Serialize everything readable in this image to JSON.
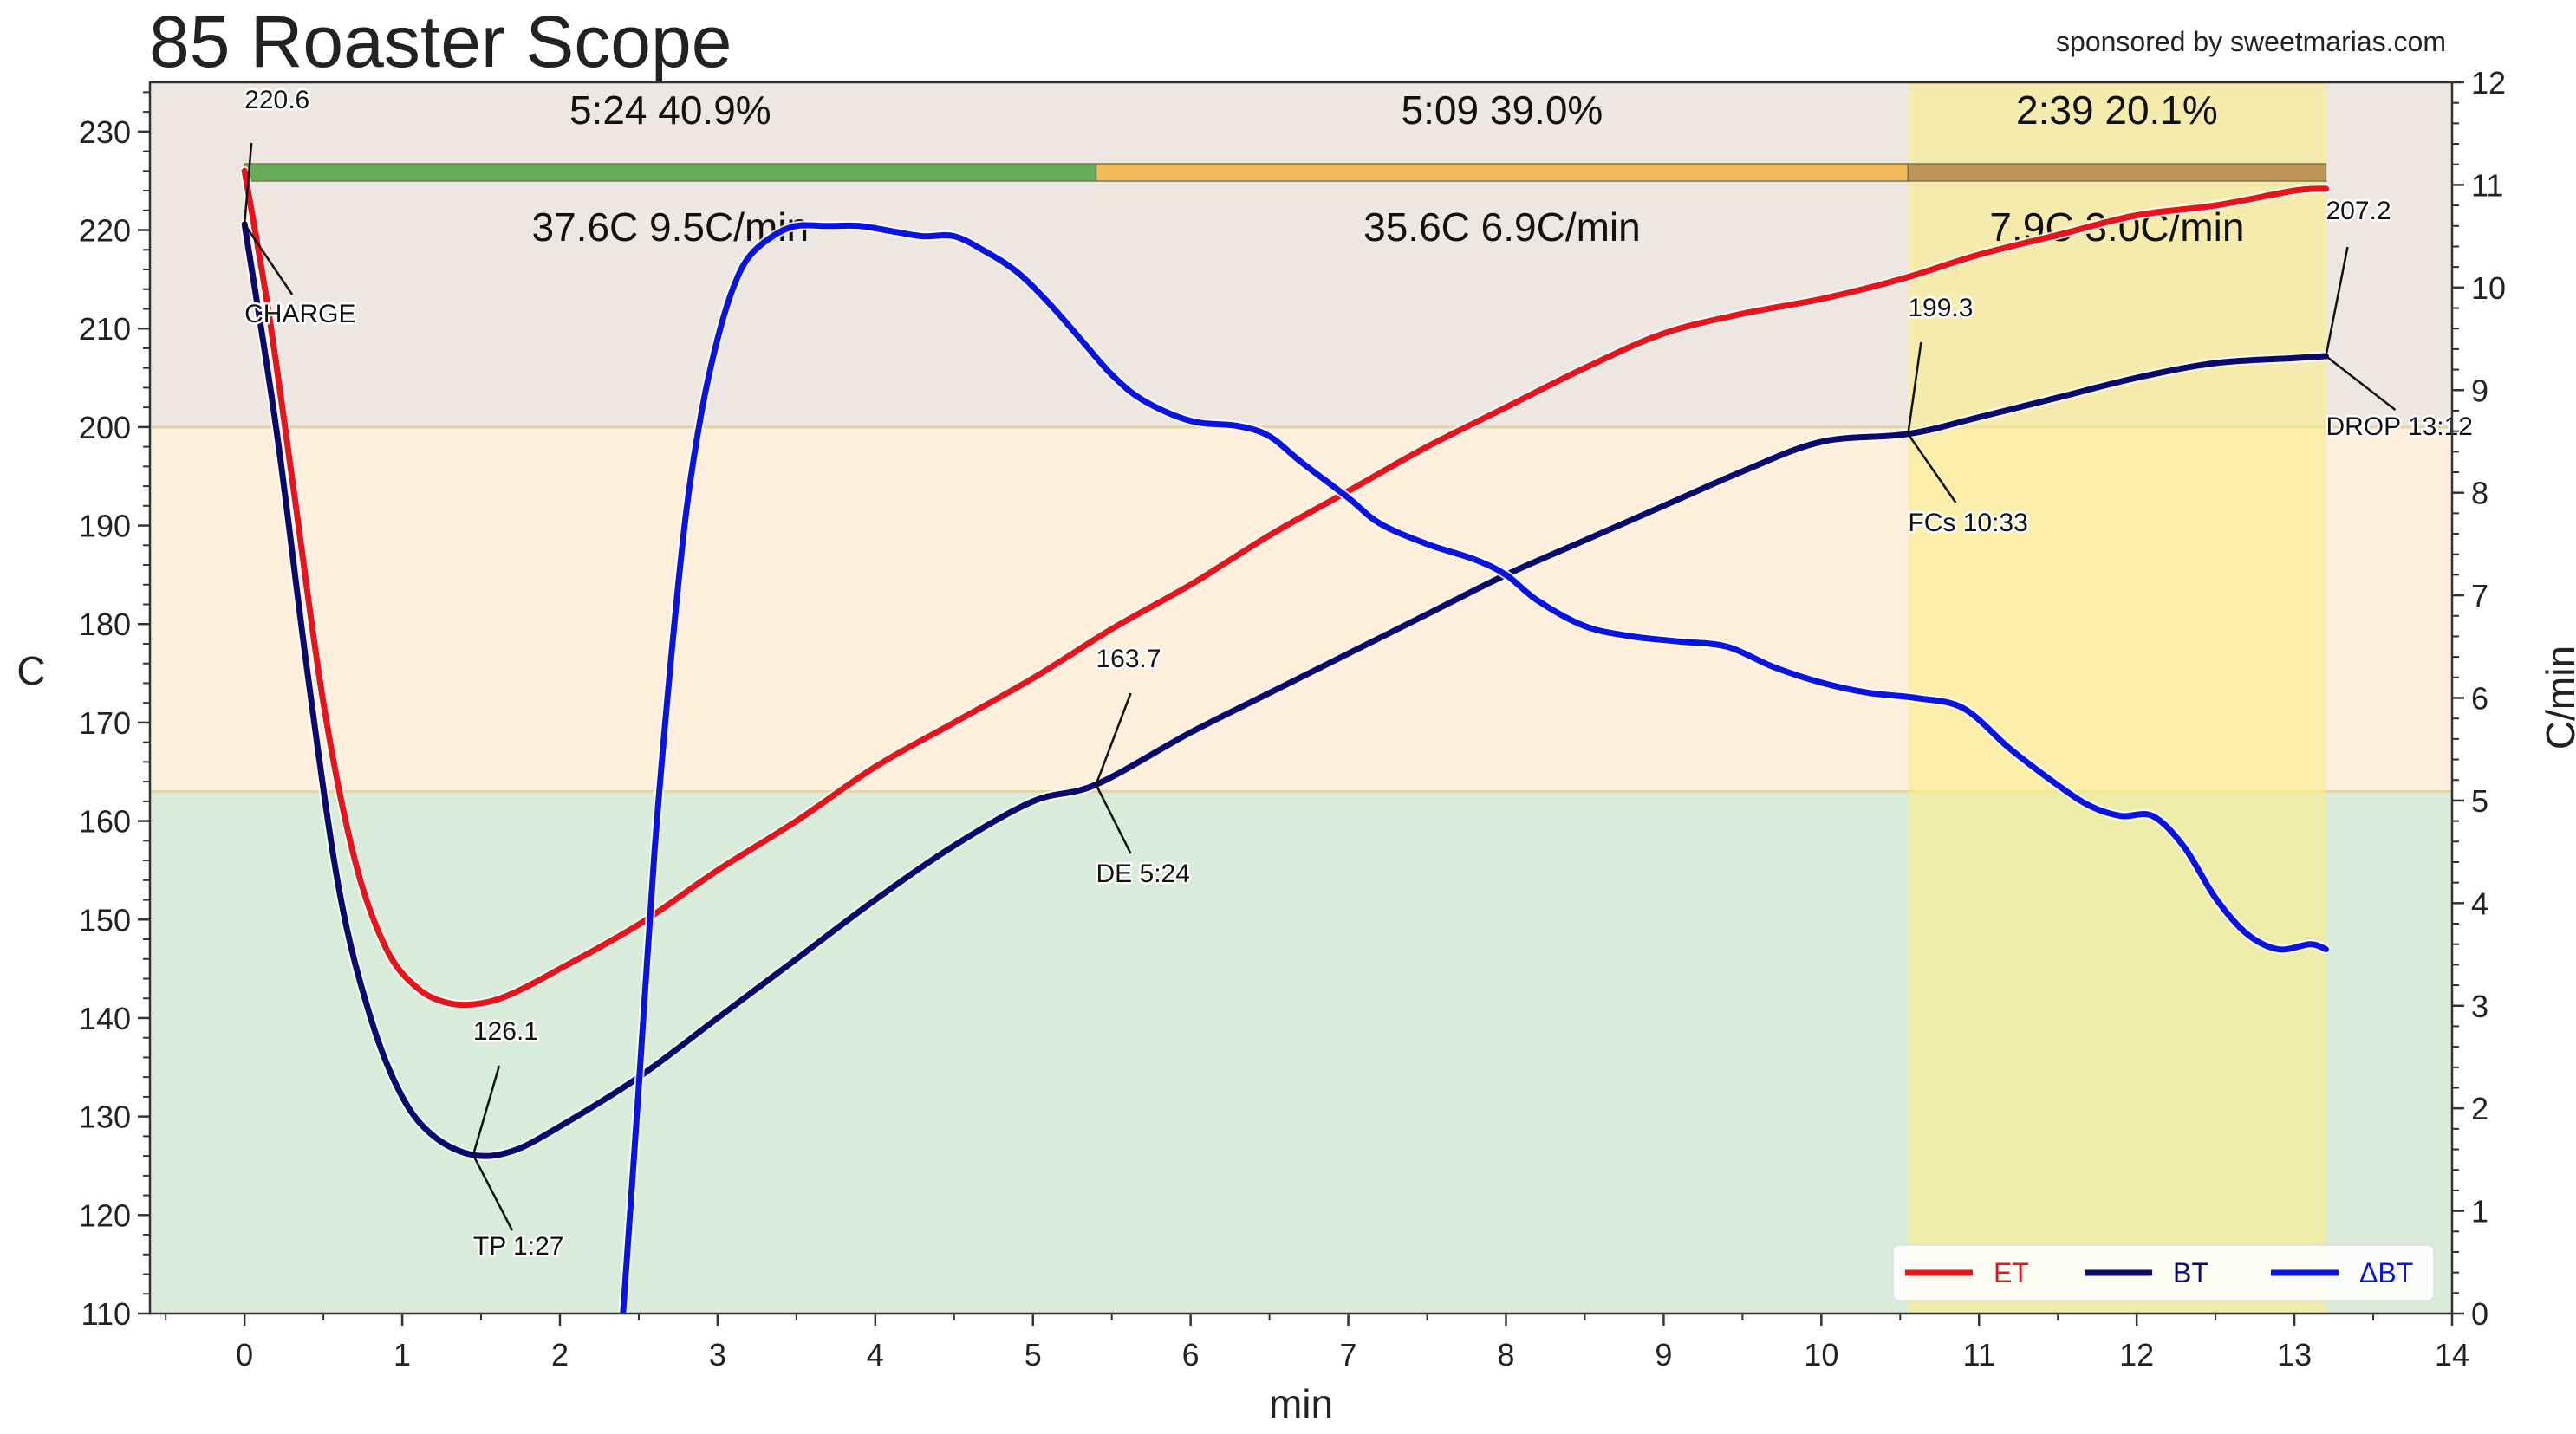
{
  "app": {
    "title": "85 Roaster Scope",
    "sponsor": "sponsored by sweetmarias.com"
  },
  "colors": {
    "et": "#e8141c",
    "bt": "#0a0a6e",
    "delta_bt": "#0a14e0",
    "zone_green": "#d9ebd9",
    "zone_orange": "#fdefdc",
    "zone_brown": "#eee7e1",
    "development_band": "#f8ee8a",
    "bar_dry": "#5aa84a",
    "bar_maillard": "#f5b84a",
    "bar_dev": "#b78c50"
  },
  "chart_data": {
    "type": "line",
    "xlabel": "min",
    "ylabel": "C",
    "y2label": "C/min",
    "xlim": [
      -0.6,
      14
    ],
    "ylim": [
      110,
      235
    ],
    "y2lim": [
      0,
      12
    ],
    "xticks": [
      "0",
      "1",
      "2",
      "3",
      "4",
      "5",
      "6",
      "7",
      "8",
      "9",
      "10",
      "11",
      "12",
      "13",
      "14"
    ],
    "yticks": [
      "110",
      "120",
      "130",
      "140",
      "150",
      "160",
      "170",
      "180",
      "190",
      "200",
      "210",
      "220",
      "230"
    ],
    "y2ticks": [
      "0",
      "1",
      "2",
      "3",
      "4",
      "5",
      "6",
      "7",
      "8",
      "9",
      "10",
      "11",
      "12"
    ],
    "grid": false,
    "legend_position": "bottom-right",
    "temperature_zones": [
      {
        "from": 110,
        "to": 163,
        "color_key": "zone_green"
      },
      {
        "from": 163,
        "to": 200,
        "color_key": "zone_orange"
      },
      {
        "from": 200,
        "to": 235,
        "color_key": "zone_brown"
      }
    ],
    "development_band": {
      "from": 10.55,
      "to": 13.2
    },
    "phases": [
      {
        "start": 0,
        "end": 5.4,
        "time_pct": "5:24  40.9%",
        "temp_ror": "37.6C  9.5C/min",
        "color_key": "bar_dry"
      },
      {
        "start": 5.4,
        "end": 10.55,
        "time_pct": "5:09  39.0%",
        "temp_ror": "35.6C  6.9C/min",
        "color_key": "bar_maillard"
      },
      {
        "start": 10.55,
        "end": 13.2,
        "time_pct": "2:39  20.1%",
        "temp_ror": "7.9C  3.0C/min",
        "color_key": "bar_dev"
      }
    ],
    "series": [
      {
        "name": "ET",
        "axis": "left",
        "color_key": "et",
        "x": [
          0,
          0.15,
          0.3,
          0.5,
          0.7,
          0.9,
          1.1,
          1.3,
          1.5,
          1.7,
          2,
          2.5,
          3,
          3.5,
          4,
          4.5,
          5,
          5.5,
          6,
          6.5,
          7,
          7.5,
          8,
          8.5,
          9,
          9.5,
          10,
          10.5,
          11,
          11.5,
          12,
          12.5,
          13,
          13.2
        ],
        "values": [
          226,
          212,
          195,
          172,
          156,
          147,
          143,
          141.5,
          141.5,
          142.5,
          145,
          149.5,
          155,
          160,
          165.5,
          170,
          174.5,
          179.5,
          184,
          189,
          193.5,
          198,
          202,
          206,
          209.5,
          211.5,
          213,
          215,
          217.5,
          219.5,
          221.5,
          222.5,
          224,
          224.2
        ]
      },
      {
        "name": "BT",
        "axis": "left",
        "color_key": "bt",
        "x": [
          0,
          0.2,
          0.4,
          0.6,
          0.8,
          1,
          1.2,
          1.45,
          1.7,
          2,
          2.5,
          3,
          3.5,
          4,
          4.5,
          5,
          5.4,
          6,
          6.5,
          7,
          7.5,
          8,
          8.5,
          9,
          9.5,
          10,
          10.55,
          11,
          11.5,
          12,
          12.5,
          13,
          13.2
        ],
        "values": [
          220.6,
          200,
          175,
          153,
          140,
          132,
          128,
          126.1,
          126.5,
          129,
          134,
          140,
          146,
          152,
          157.5,
          162,
          163.7,
          169,
          173,
          177,
          181,
          185,
          188.5,
          192,
          195.5,
          198.5,
          199.3,
          201,
          203,
          205,
          206.5,
          207,
          207.2
        ]
      },
      {
        "name": "ΔBT",
        "axis": "right",
        "color_key": "delta_bt",
        "x": [
          2.4,
          2.5,
          2.6,
          2.7,
          2.8,
          2.9,
          3,
          3.1,
          3.2,
          3.35,
          3.5,
          3.7,
          3.9,
          4.1,
          4.3,
          4.5,
          4.7,
          4.9,
          5.1,
          5.3,
          5.5,
          5.7,
          6,
          6.3,
          6.5,
          6.7,
          7,
          7.2,
          7.5,
          7.8,
          8,
          8.2,
          8.5,
          8.8,
          9.1,
          9.4,
          9.7,
          10,
          10.3,
          10.6,
          10.9,
          11.2,
          11.5,
          11.7,
          11.9,
          12.1,
          12.3,
          12.5,
          12.7,
          12.9,
          13.1,
          13.2
        ],
        "values": [
          0,
          2.2,
          4.5,
          6.3,
          7.8,
          8.8,
          9.5,
          10,
          10.3,
          10.5,
          10.6,
          10.6,
          10.6,
          10.55,
          10.5,
          10.5,
          10.35,
          10.15,
          9.85,
          9.5,
          9.15,
          8.9,
          8.7,
          8.65,
          8.55,
          8.3,
          7.95,
          7.7,
          7.5,
          7.35,
          7.2,
          6.95,
          6.7,
          6.6,
          6.55,
          6.5,
          6.3,
          6.15,
          6.05,
          6,
          5.9,
          5.5,
          5.15,
          4.95,
          4.85,
          4.85,
          4.55,
          4.05,
          3.7,
          3.55,
          3.6,
          3.55
        ]
      }
    ],
    "events": [
      {
        "id": "charge",
        "x": 0,
        "y": 220.6,
        "value": "220.6",
        "label": "CHARGE"
      },
      {
        "id": "tp",
        "x": 1.45,
        "y": 126.1,
        "value": "126.1",
        "label": "TP 1:27"
      },
      {
        "id": "de",
        "x": 5.4,
        "y": 163.7,
        "value": "163.7",
        "label": "DE 5:24"
      },
      {
        "id": "fcs",
        "x": 10.55,
        "y": 199.3,
        "value": "199.3",
        "label": "FCs 10:33"
      },
      {
        "id": "drop",
        "x": 13.2,
        "y": 207.2,
        "value": "207.2",
        "label": "DROP 13:12"
      }
    ]
  }
}
